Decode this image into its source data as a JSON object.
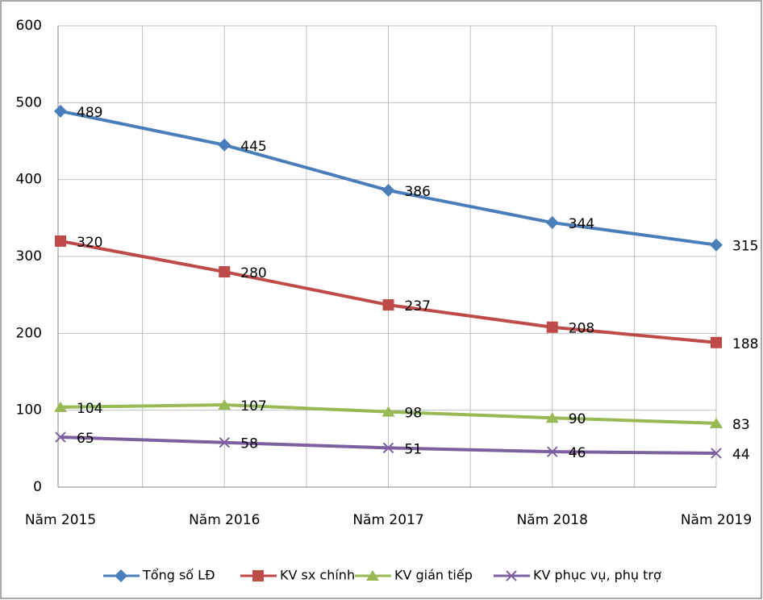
{
  "chart_data": {
    "type": "line",
    "categories": [
      "Năm 2015",
      "Năm 2016",
      "Năm 2017",
      "Năm 2018",
      "Năm 2019"
    ],
    "series": [
      {
        "name": "Tổng số LĐ",
        "color": "#4a7ebb",
        "marker": "diamond",
        "values": [
          489,
          445,
          386,
          344,
          315
        ]
      },
      {
        "name": "KV sx chính",
        "color": "#be4b48",
        "marker": "square",
        "values": [
          320,
          280,
          237,
          208,
          188
        ]
      },
      {
        "name": "KV gián tiếp",
        "color": "#98b954",
        "marker": "triangle",
        "values": [
          104,
          107,
          98,
          90,
          83
        ]
      },
      {
        "name": "KV phục vụ, phụ trợ",
        "color": "#7d60a0",
        "marker": "x",
        "values": [
          65,
          58,
          51,
          46,
          44
        ]
      }
    ],
    "ylim": [
      0,
      600
    ],
    "yticks": [
      0,
      100,
      200,
      300,
      400,
      500,
      600
    ],
    "grid": true,
    "legend": "bottom"
  }
}
